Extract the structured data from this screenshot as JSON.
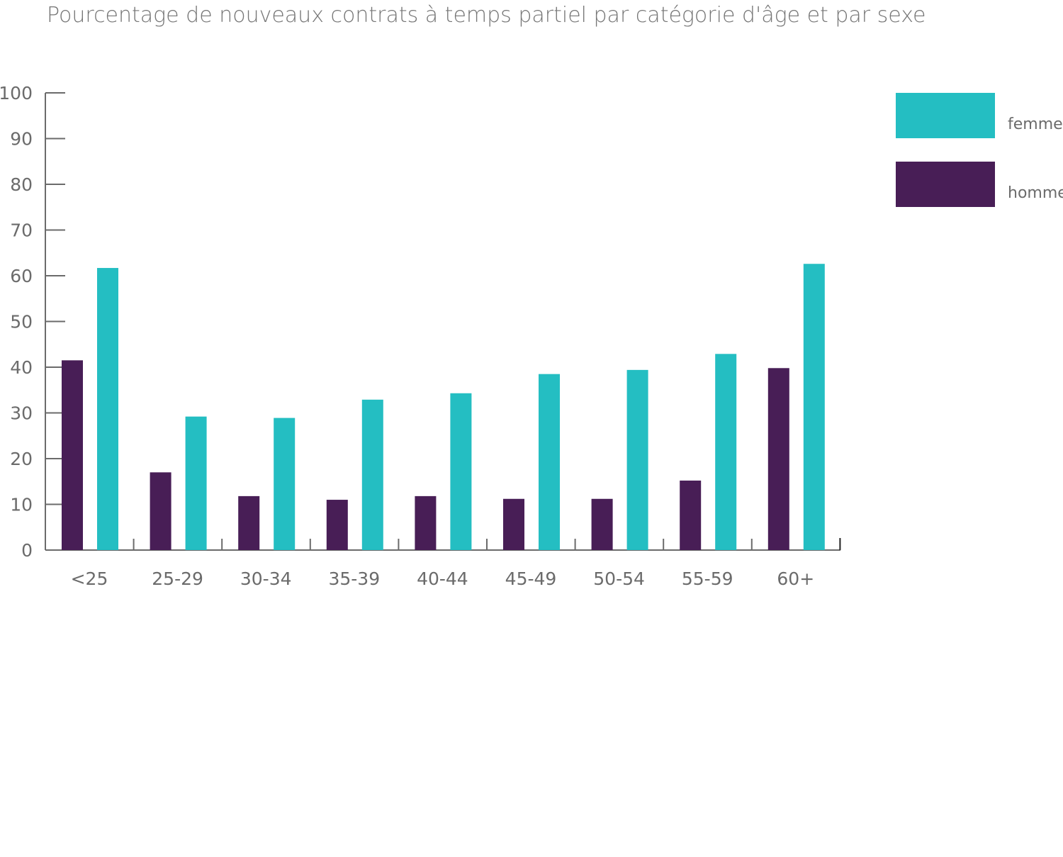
{
  "chart_data": {
    "type": "bar",
    "title": "Pourcentage de nouveaux contrats à temps partiel par catégorie d'âge et par sexe",
    "xlabel": "",
    "ylabel": "",
    "ylim": [
      0,
      100
    ],
    "yticks": [
      0,
      10,
      20,
      30,
      40,
      50,
      60,
      70,
      80,
      90,
      100
    ],
    "ytick_labels": [
      "0",
      "10",
      "20",
      "30",
      "40",
      "50",
      "60",
      "70",
      "80",
      "90",
      "100"
    ],
    "categories": [
      "<25",
      "25-29",
      "30-34",
      "35-39",
      "40-44",
      "45-49",
      "50-54",
      "55-59",
      "60+"
    ],
    "series": [
      {
        "name": "homme",
        "color": "#481e56",
        "values": [
          41.5,
          17.0,
          11.8,
          11.0,
          11.8,
          11.2,
          11.2,
          15.2,
          39.8
        ]
      },
      {
        "name": "femme",
        "color": "#24bec2",
        "values": [
          61.7,
          29.2,
          28.9,
          32.9,
          34.3,
          38.5,
          39.4,
          42.9,
          62.6
        ]
      }
    ],
    "legend": {
      "position": "top-right",
      "entries": [
        {
          "label": "femme",
          "color": "#24bec2"
        },
        {
          "label": "homme",
          "color": "#481e56"
        }
      ]
    },
    "grid": false
  }
}
